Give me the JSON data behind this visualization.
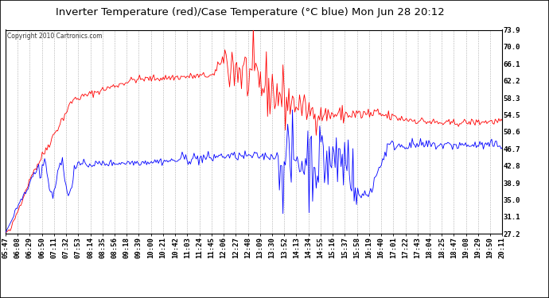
{
  "title": "Inverter Temperature (red)/Case Temperature (°C blue) Mon Jun 28 20:12",
  "copyright": "Copyright 2010 Cartronics.com",
  "y_ticks": [
    27.2,
    31.1,
    35.0,
    38.9,
    42.8,
    46.7,
    50.6,
    54.5,
    58.3,
    62.2,
    66.1,
    70.0,
    73.9
  ],
  "ylim": [
    27.2,
    73.9
  ],
  "x_labels": [
    "05:47",
    "06:08",
    "06:29",
    "06:50",
    "07:11",
    "07:32",
    "07:53",
    "08:14",
    "08:35",
    "08:56",
    "09:18",
    "09:39",
    "10:00",
    "10:21",
    "10:42",
    "11:03",
    "11:24",
    "11:45",
    "12:06",
    "12:27",
    "12:48",
    "13:09",
    "13:30",
    "13:52",
    "14:13",
    "14:34",
    "14:55",
    "15:16",
    "15:37",
    "15:58",
    "16:19",
    "16:40",
    "17:01",
    "17:22",
    "17:43",
    "18:04",
    "18:25",
    "18:47",
    "19:08",
    "19:29",
    "19:50",
    "20:11"
  ],
  "background_color": "#ffffff",
  "plot_bg_color": "#ffffff",
  "grid_color": "#b0b0b0",
  "red_color": "#ff0000",
  "blue_color": "#0000ff",
  "title_fontsize": 9.5,
  "tick_fontsize": 6.5,
  "copyright_fontsize": 5.5
}
